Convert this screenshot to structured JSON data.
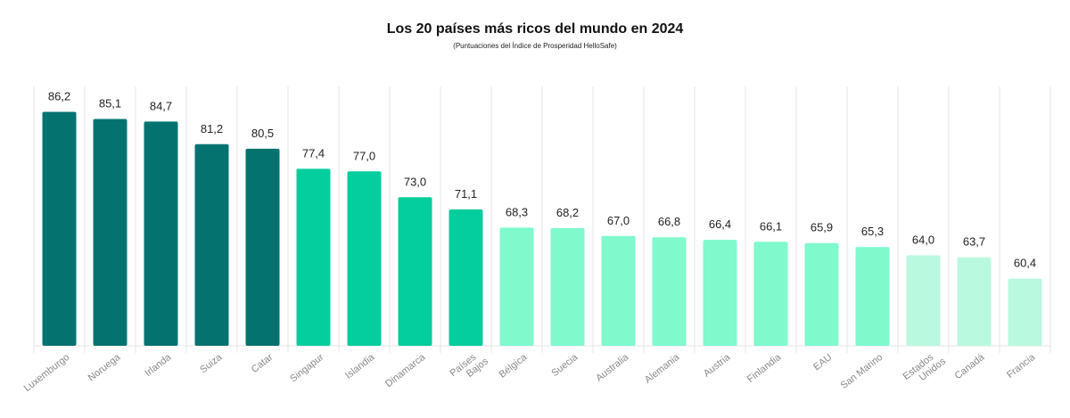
{
  "chart_data": {
    "type": "bar",
    "title": "Los 20 países más ricos del mundo en 2024",
    "subtitle": "(Puntuaciones del Índice de Prosperidad HelloSafe)",
    "xlabel": "",
    "ylabel": "",
    "ylim": [
      50,
      90
    ],
    "grid": "vertical",
    "categories": [
      "Luxemburgo",
      "Noruega",
      "Irlanda",
      "Suiza",
      "Catar",
      "Singapur",
      "Islandia",
      "Dinamarca",
      "Países Bajos",
      "Bélgica",
      "Suecia",
      "Australia",
      "Alemania",
      "Austria",
      "Finlandia",
      "EAU",
      "San Marino",
      "Estados Unidos",
      "Canadá",
      "Francia"
    ],
    "values": [
      86.2,
      85.1,
      84.7,
      81.2,
      80.5,
      77.4,
      77.0,
      73.0,
      71.1,
      68.3,
      68.2,
      67.0,
      66.8,
      66.4,
      66.1,
      65.9,
      65.3,
      64.0,
      63.7,
      60.4
    ],
    "data_labels": [
      "86,2",
      "85,1",
      "84,7",
      "81,2",
      "80,5",
      "77,4",
      "77,0",
      "73,0",
      "71,1",
      "68,3",
      "68,2",
      "67,0",
      "66,8",
      "66,4",
      "66,1",
      "65,9",
      "65,3",
      "64,0",
      "63,7",
      "60,4"
    ],
    "colors": [
      "#047370",
      "#047370",
      "#047370",
      "#047370",
      "#047370",
      "#04CE9D",
      "#04CE9D",
      "#04CE9D",
      "#04CE9D",
      "#80F9CC",
      "#80F9CC",
      "#80F9CC",
      "#80F9CC",
      "#80F9CC",
      "#80F9CC",
      "#80F9CC",
      "#80F9CC",
      "#B9F9DF",
      "#B9F9DF",
      "#B9F9DF"
    ]
  }
}
